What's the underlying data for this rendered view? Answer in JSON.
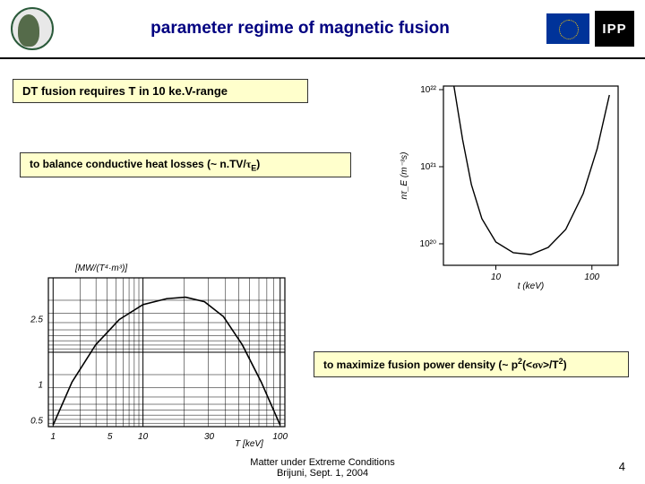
{
  "header": {
    "title": "parameter regime of magnetic fusion",
    "ipp_text": "IPP"
  },
  "callouts": {
    "c1": "DT fusion requires T in 10 ke.V-range",
    "c2_prefix": "to balance conductive heat losses (~ n.TV/",
    "c2_tau": "τ",
    "c2_sub": "E",
    "c2_suffix": ")",
    "c3_prefix": "to maximize fusion power density (~ p",
    "c3_sup1": "2",
    "c3_mid": "(<",
    "c3_sigma": "σν",
    "c3_mid2": ">/T",
    "c3_sup2": "2",
    "c3_suffix": ")"
  },
  "chart_right": {
    "type": "line",
    "background": "#ffffff",
    "axis_color": "#000000",
    "line_color": "#000000",
    "xscale": "log",
    "yscale": "log",
    "xlabel": "t (keV)",
    "ylabel": "nτ_E (m⁻³s)",
    "x_ticks": [
      {
        "val": 10,
        "label": "10",
        "pos": 0.3
      },
      {
        "val": 100,
        "label": "100",
        "pos": 0.85
      }
    ],
    "y_ticks": [
      {
        "val": 1e+20,
        "label": "10²⁰",
        "pos": 0.88
      },
      {
        "val": 1e+21,
        "label": "10²¹",
        "pos": 0.45
      },
      {
        "val": 1e+22,
        "label": "10²²",
        "pos": 0.02
      }
    ],
    "curve_points": [
      {
        "x": 0.06,
        "y": 0.0
      },
      {
        "x": 0.11,
        "y": 0.3
      },
      {
        "x": 0.16,
        "y": 0.55
      },
      {
        "x": 0.22,
        "y": 0.74
      },
      {
        "x": 0.3,
        "y": 0.87
      },
      {
        "x": 0.4,
        "y": 0.93
      },
      {
        "x": 0.5,
        "y": 0.94
      },
      {
        "x": 0.6,
        "y": 0.9
      },
      {
        "x": 0.7,
        "y": 0.8
      },
      {
        "x": 0.8,
        "y": 0.6
      },
      {
        "x": 0.88,
        "y": 0.35
      },
      {
        "x": 0.95,
        "y": 0.05
      }
    ]
  },
  "chart_left": {
    "type": "line-loglog",
    "background": "#ffffff",
    "axis_color": "#000000",
    "grid_color": "#000000",
    "ylabel_tex": "[MW/(T⁴·m³)]",
    "xlabel_tex": "T [keV]",
    "x_ticks": [
      {
        "label": "1",
        "pos": 0.02
      },
      {
        "label": "5",
        "pos": 0.26
      },
      {
        "label": "10",
        "pos": 0.4
      },
      {
        "label": "30",
        "pos": 0.68
      },
      {
        "label": "100",
        "pos": 0.98
      }
    ],
    "y_ticks": [
      {
        "label": "0.5",
        "pos": 0.96
      },
      {
        "label": "1",
        "pos": 0.72
      },
      {
        "label": "2.5",
        "pos": 0.28
      }
    ],
    "curve_points": [
      {
        "x": 0.02,
        "y": 0.99
      },
      {
        "x": 0.1,
        "y": 0.7
      },
      {
        "x": 0.2,
        "y": 0.45
      },
      {
        "x": 0.3,
        "y": 0.28
      },
      {
        "x": 0.4,
        "y": 0.18
      },
      {
        "x": 0.5,
        "y": 0.14
      },
      {
        "x": 0.58,
        "y": 0.13
      },
      {
        "x": 0.66,
        "y": 0.16
      },
      {
        "x": 0.74,
        "y": 0.26
      },
      {
        "x": 0.82,
        "y": 0.45
      },
      {
        "x": 0.9,
        "y": 0.7
      },
      {
        "x": 0.98,
        "y": 0.99
      }
    ]
  },
  "footer": {
    "line1": "Matter under Extreme Conditions",
    "line2": "Brijuni, Sept. 1, 2004",
    "page": "4"
  }
}
